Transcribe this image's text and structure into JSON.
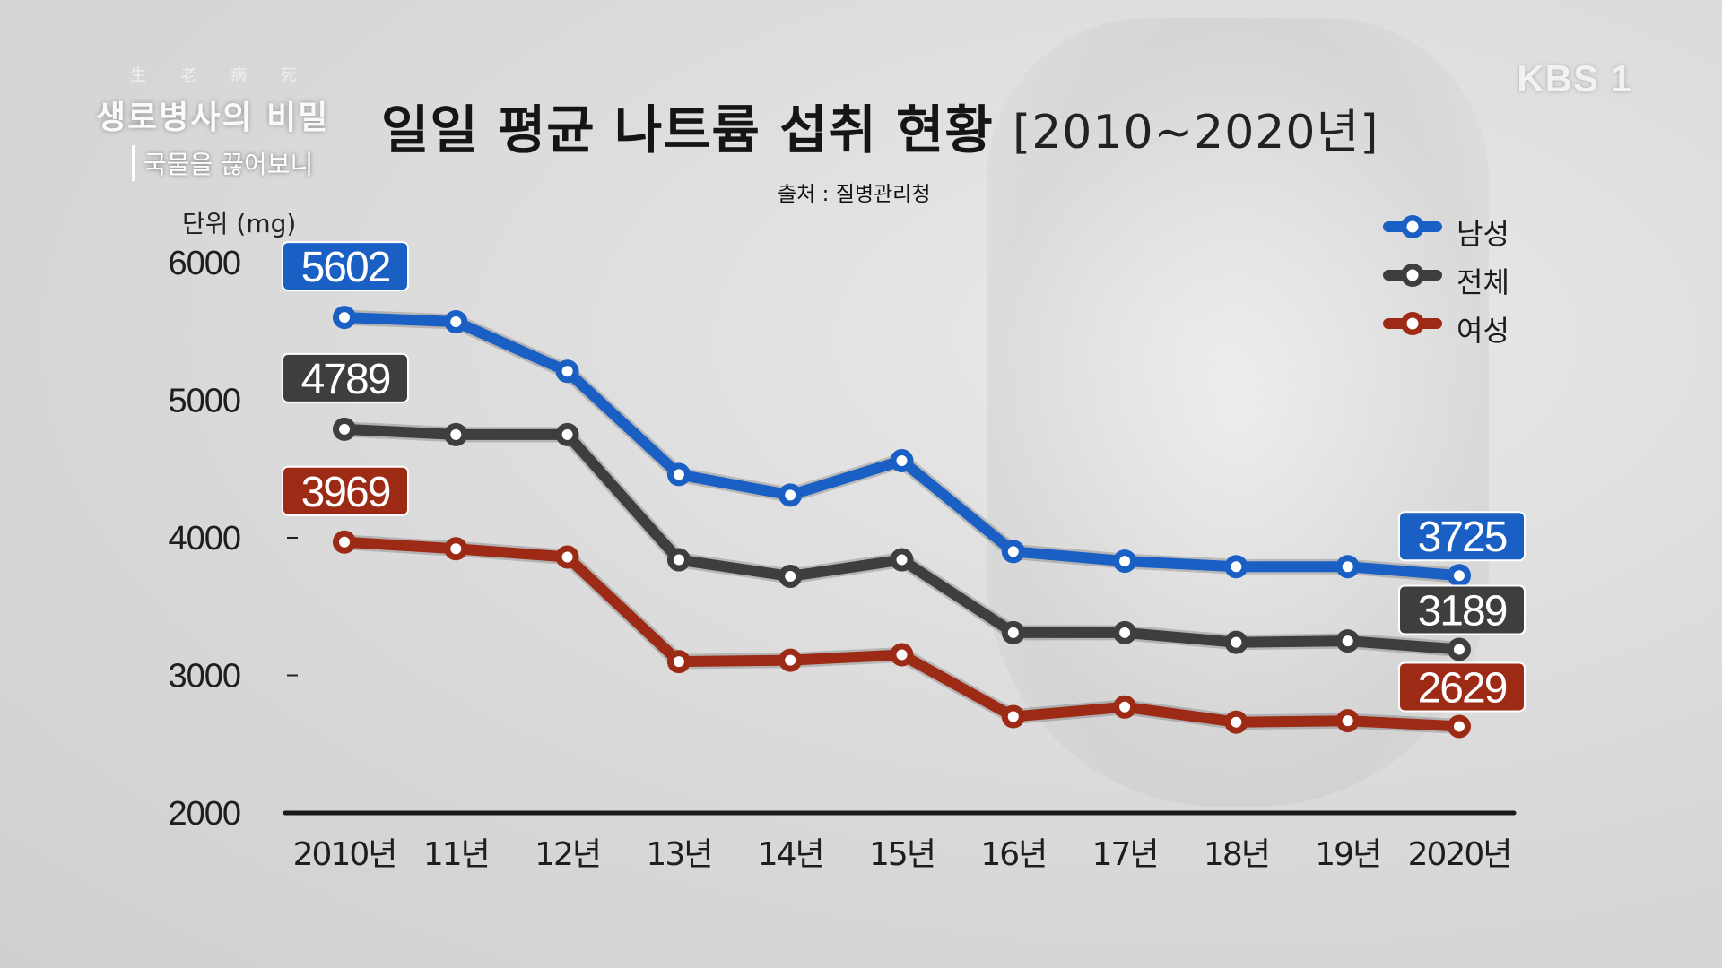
{
  "logo": {
    "hanja": "生老病死",
    "main": "생로병사의 비밀",
    "sub": "국물을 끊어보니"
  },
  "broadcaster": "KBS 1",
  "title": {
    "main": "일일 평균 나트륨 섭취 현황",
    "period": "[2010~2020년]"
  },
  "source": "출처 : 질병관리청",
  "colors": {
    "male": "#1a5fc4",
    "total": "#3e3e3e",
    "female": "#9c2a14"
  },
  "chart_data": {
    "type": "line",
    "title": "일일 평균 나트륨 섭취 현황 [2010~2020년]",
    "ylabel": "단위 (mg)",
    "ylim": [
      2000,
      6000
    ],
    "yticks": [
      "6000",
      "5000",
      "4000",
      "3000",
      "2000"
    ],
    "yticks_values": [
      6000,
      5000,
      4000,
      3000,
      2000
    ],
    "categories": [
      "2010년",
      "11년",
      "12년",
      "13년",
      "14년",
      "15년",
      "16년",
      "17년",
      "18년",
      "19년",
      "2020년"
    ],
    "legend_position": "top-right",
    "series": [
      {
        "name": "남성",
        "key": "male",
        "values": [
          5602,
          5570,
          5210,
          4460,
          4310,
          4560,
          3900,
          3830,
          3790,
          3790,
          3725
        ],
        "labels": {
          "first": "5602",
          "last": "3725"
        }
      },
      {
        "name": "전체",
        "key": "total",
        "values": [
          4789,
          4750,
          4750,
          3840,
          3720,
          3840,
          3310,
          3310,
          3240,
          3250,
          3189
        ],
        "labels": {
          "first": "4789",
          "last": "3189"
        }
      },
      {
        "name": "여성",
        "key": "female",
        "values": [
          3969,
          3920,
          3860,
          3100,
          3110,
          3150,
          2700,
          2770,
          2660,
          2670,
          2629
        ],
        "labels": {
          "first": "3969",
          "last": "2629"
        }
      }
    ]
  }
}
